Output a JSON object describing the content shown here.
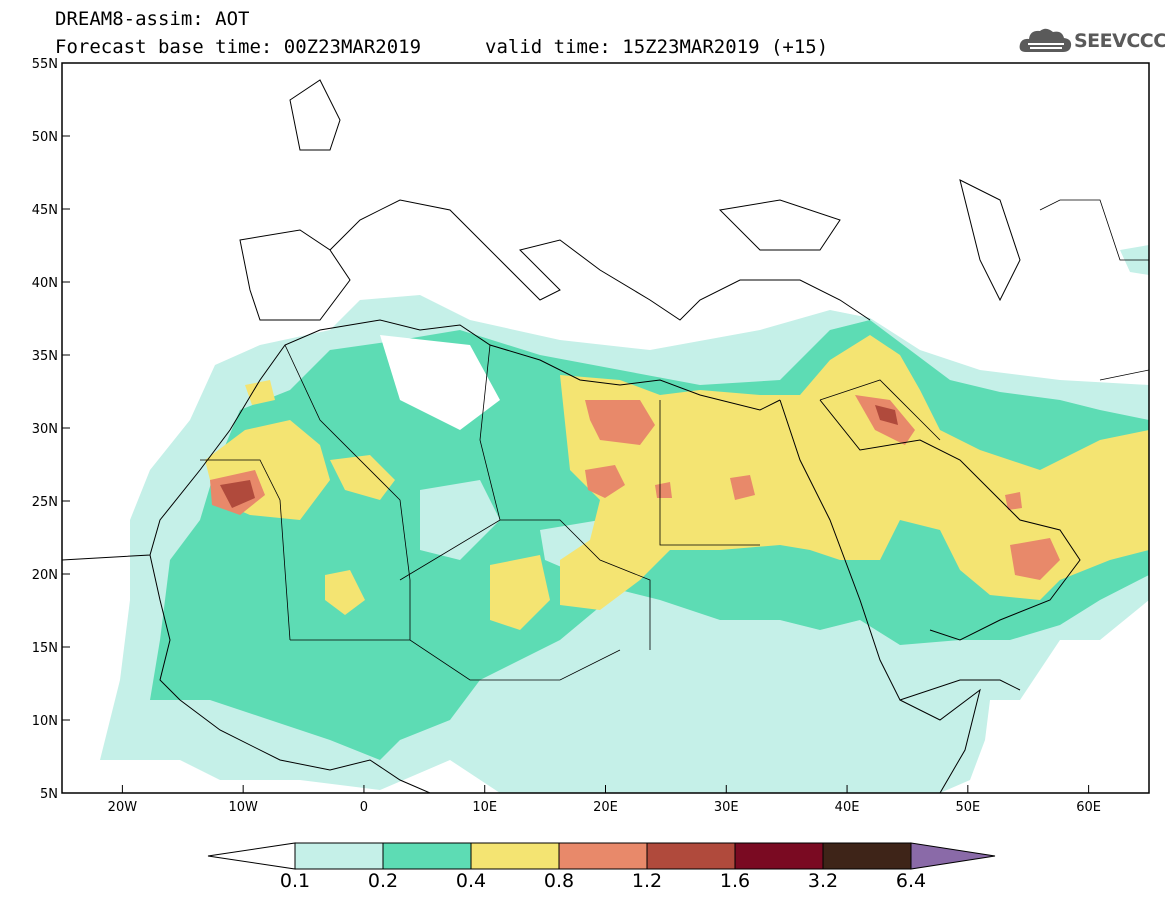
{
  "header": {
    "model_line": "DREAM8-assim: AOT",
    "base_line": "Forecast base time: 00Z23MAR2019",
    "valid_line": "valid time: 15Z23MAR2019 (+15)",
    "logo_text": "SEEVCCC",
    "logo_icon": "cloud-icon"
  },
  "map": {
    "projection": "lat-lon",
    "lon_range": [
      -25,
      65
    ],
    "lat_range": [
      5,
      55
    ],
    "lon_ticks": [
      {
        "value": -20,
        "label": "20W"
      },
      {
        "value": -10,
        "label": "10W"
      },
      {
        "value": 0,
        "label": "0"
      },
      {
        "value": 10,
        "label": "10E"
      },
      {
        "value": 20,
        "label": "20E"
      },
      {
        "value": 30,
        "label": "30E"
      },
      {
        "value": 40,
        "label": "40E"
      },
      {
        "value": 50,
        "label": "50E"
      },
      {
        "value": 60,
        "label": "60E"
      }
    ],
    "lat_ticks": [
      {
        "value": 55,
        "label": "55N"
      },
      {
        "value": 50,
        "label": "50N"
      },
      {
        "value": 45,
        "label": "45N"
      },
      {
        "value": 40,
        "label": "40N"
      },
      {
        "value": 35,
        "label": "35N"
      },
      {
        "value": 30,
        "label": "30N"
      },
      {
        "value": 25,
        "label": "25N"
      },
      {
        "value": 20,
        "label": "20N"
      },
      {
        "value": 15,
        "label": "15N"
      },
      {
        "value": 10,
        "label": "10N"
      },
      {
        "value": 5,
        "label": "5N"
      }
    ]
  },
  "colorbar": {
    "labels": [
      "0.1",
      "0.2",
      "0.4",
      "0.8",
      "1.2",
      "1.6",
      "3.2",
      "6.4"
    ],
    "colors": [
      "#ffffff",
      "#c5f0e8",
      "#5ddcb4",
      "#f4e472",
      "#e8896a",
      "#b04a3c",
      "#7a0a22",
      "#3e2418",
      "#8a6aa8"
    ]
  }
}
